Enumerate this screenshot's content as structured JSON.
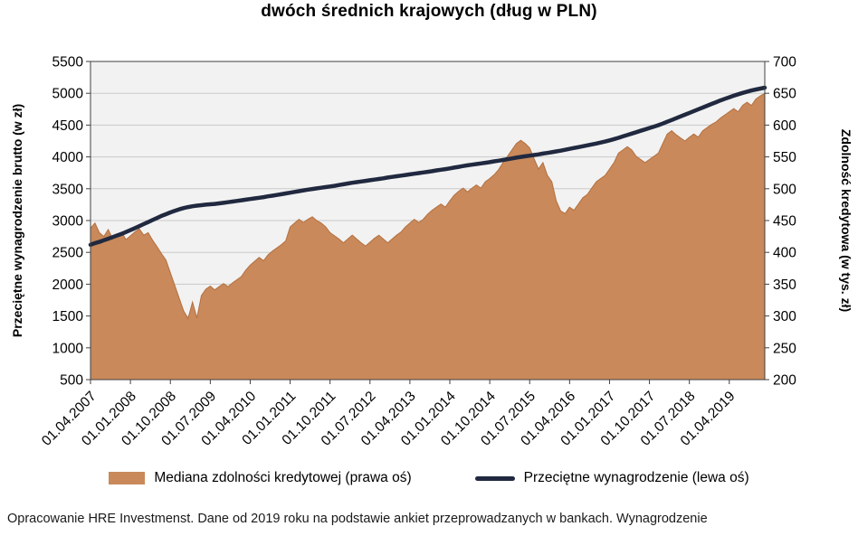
{
  "chart_data": {
    "type": "area",
    "title": "dwóch średnich krajowych (dług w PLN)",
    "grid_color": "#C9C9C9",
    "plot_bg": "#F2F2F2",
    "border_color": "#404040",
    "left_axis": {
      "label": "Przeciętne wynagrodzenie brutto (w zł)",
      "min": 500,
      "max": 5500,
      "step": 500
    },
    "right_axis": {
      "label": "Zdolność kredytowa (w tys. zł)",
      "min": 200,
      "max": 700,
      "step": 50
    },
    "x_tick_every_n_points": 9,
    "x_tick_labels": [
      "01.04.2007",
      "01.01.2008",
      "01.10.2008",
      "01.07.2009",
      "01.04.2010",
      "01.01.2011",
      "01.10.2011",
      "01.07.2012",
      "01.04.2013",
      "01.01.2014",
      "01.10.2014",
      "01.07.2015",
      "01.04.2016",
      "01.01.2017",
      "01.10.2017",
      "01.07.2018",
      "01.04.2019"
    ],
    "series": [
      {
        "name": "Mediana zdolności kredytowej (prawa oś)",
        "type": "area",
        "axis": "right",
        "color": "#C9895A",
        "edge": "#B4703F",
        "values": [
          438,
          446,
          431,
          425,
          436,
          421,
          427,
          432,
          420,
          426,
          432,
          437,
          427,
          431,
          419,
          409,
          398,
          388,
          368,
          348,
          328,
          308,
          296,
          322,
          297,
          332,
          342,
          347,
          341,
          346,
          351,
          346,
          352,
          357,
          362,
          372,
          380,
          386,
          392,
          387,
          396,
          402,
          407,
          412,
          418,
          440,
          446,
          452,
          447,
          452,
          456,
          450,
          446,
          440,
          431,
          426,
          421,
          415,
          421,
          427,
          421,
          415,
          410,
          416,
          422,
          427,
          421,
          415,
          421,
          427,
          432,
          440,
          446,
          452,
          447,
          452,
          460,
          466,
          471,
          476,
          471,
          481,
          490,
          496,
          501,
          495,
          501,
          506,
          501,
          511,
          516,
          522,
          530,
          541,
          551,
          561,
          571,
          576,
          571,
          564,
          547,
          531,
          541,
          521,
          511,
          481,
          465,
          461,
          471,
          466,
          476,
          486,
          491,
          501,
          511,
          516,
          521,
          531,
          541,
          556,
          561,
          566,
          561,
          551,
          546,
          541,
          546,
          551,
          556,
          571,
          586,
          591,
          585,
          580,
          575,
          581,
          586,
          581,
          591,
          596,
          601,
          605,
          611,
          616,
          621,
          626,
          621,
          631,
          636,
          631,
          641,
          646,
          650
        ]
      },
      {
        "name": "Przeciętne wynagrodzenie (lewa oś)",
        "type": "line",
        "axis": "left",
        "color": "#20293F",
        "values": [
          2620,
          2645,
          2665,
          2690,
          2715,
          2740,
          2765,
          2790,
          2820,
          2850,
          2880,
          2912,
          2944,
          2976,
          3008,
          3040,
          3072,
          3100,
          3128,
          3152,
          3176,
          3196,
          3212,
          3224,
          3234,
          3242,
          3250,
          3256,
          3262,
          3270,
          3278,
          3288,
          3298,
          3308,
          3318,
          3328,
          3338,
          3348,
          3358,
          3368,
          3380,
          3390,
          3402,
          3414,
          3426,
          3438,
          3450,
          3462,
          3474,
          3486,
          3496,
          3506,
          3516,
          3526,
          3536,
          3546,
          3558,
          3570,
          3582,
          3594,
          3604,
          3614,
          3624,
          3634,
          3644,
          3654,
          3664,
          3676,
          3686,
          3696,
          3706,
          3716,
          3726,
          3736,
          3746,
          3756,
          3766,
          3776,
          3788,
          3798,
          3808,
          3820,
          3832,
          3844,
          3856,
          3868,
          3878,
          3888,
          3898,
          3908,
          3918,
          3930,
          3940,
          3952,
          3964,
          3976,
          3988,
          4000,
          4010,
          4020,
          4030,
          4040,
          4052,
          4062,
          4074,
          4086,
          4098,
          4112,
          4126,
          4140,
          4154,
          4168,
          4182,
          4196,
          4210,
          4226,
          4242,
          4260,
          4280,
          4300,
          4322,
          4344,
          4366,
          4388,
          4410,
          4432,
          4454,
          4476,
          4498,
          4524,
          4552,
          4580,
          4608,
          4636,
          4664,
          4692,
          4720,
          4748,
          4776,
          4804,
          4832,
          4860,
          4888,
          4914,
          4938,
          4962,
          4984,
          5006,
          5026,
          5044,
          5060,
          5074,
          5088
        ]
      }
    ]
  },
  "footer": {
    "text": "Opracowanie HRE Investmenst. Dane od 2019 roku na podstawie ankiet przeprowadzanych w bankach. Wynagrodzenie"
  }
}
